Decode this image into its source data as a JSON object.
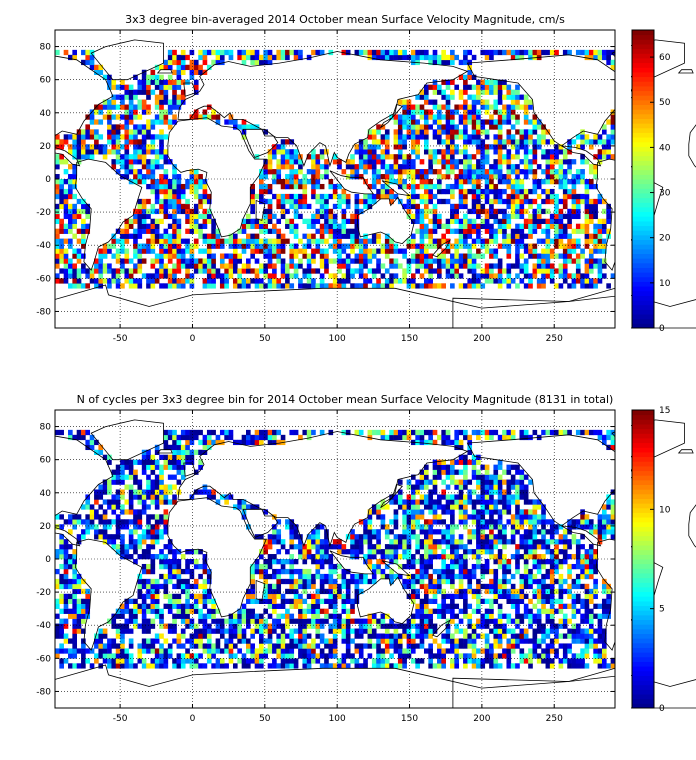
{
  "chart_data": [
    {
      "type": "heatmap",
      "title": "3x3 degree bin-averaged 2014 October mean Surface Velocity Magnitude, cm/s",
      "xlabel": "",
      "ylabel": "",
      "xlim": [
        -95,
        292
      ],
      "ylim": [
        -90,
        90
      ],
      "x_ticks": [
        -50,
        0,
        50,
        100,
        150,
        200,
        250
      ],
      "y_ticks": [
        80,
        60,
        40,
        20,
        0,
        -20,
        -40,
        -60,
        -80
      ],
      "colorbar": {
        "min": 0,
        "max": 66,
        "ticks": [
          0,
          10,
          20,
          30,
          40,
          50,
          60
        ]
      },
      "colormap": [
        "#00008f",
        "#0000ff",
        "#0080ff",
        "#00ffff",
        "#80ff80",
        "#ffff00",
        "#ff8000",
        "#ff0000",
        "#800000"
      ],
      "grid": true,
      "bin_size_deg": 3
    },
    {
      "type": "heatmap",
      "title": "N of cycles per 3x3 degree bin for 2014 October mean Surface Velocity Magnitude (8131 in total)",
      "xlabel": "",
      "ylabel": "",
      "xlim": [
        -95,
        292
      ],
      "ylim": [
        -90,
        90
      ],
      "x_ticks": [
        -50,
        0,
        50,
        100,
        150,
        200,
        250
      ],
      "y_ticks": [
        80,
        60,
        40,
        20,
        0,
        -20,
        -40,
        -60,
        -80
      ],
      "colorbar": {
        "min": 0,
        "max": 15,
        "ticks": [
          0,
          5,
          10,
          15
        ]
      },
      "colormap": [
        "#00008f",
        "#0000ff",
        "#0080ff",
        "#00ffff",
        "#80ff80",
        "#ffff00",
        "#ff8000",
        "#ff0000",
        "#800000"
      ],
      "grid": true,
      "bin_size_deg": 3
    }
  ]
}
